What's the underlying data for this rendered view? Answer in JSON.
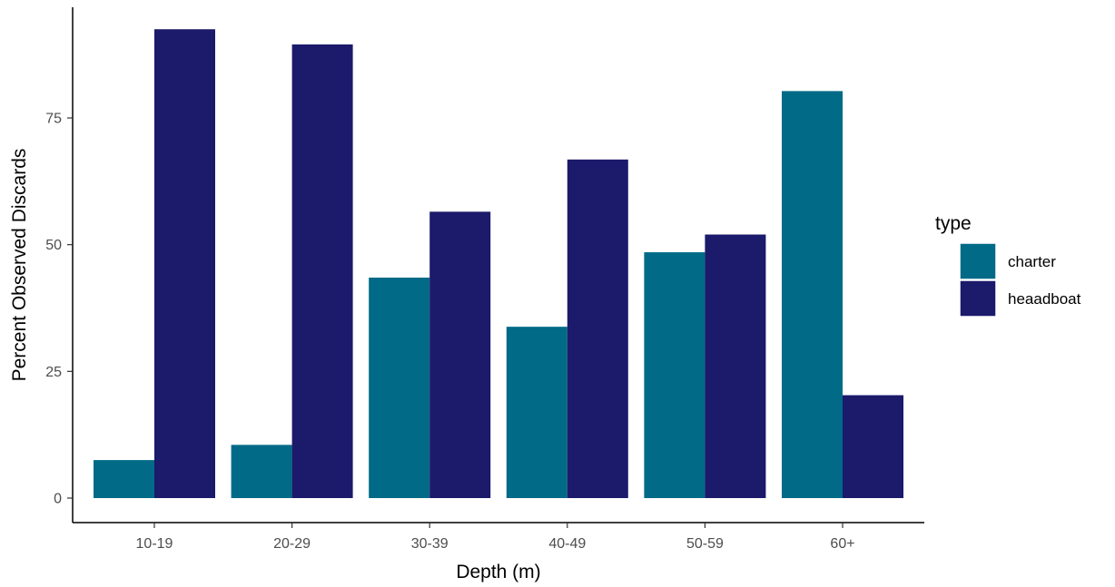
{
  "chart_data": {
    "type": "bar",
    "xlabel": "Depth (m)",
    "ylabel": "Percent Observed Discards",
    "categories": [
      "10-19",
      "20-29",
      "30-39",
      "40-49",
      "50-59",
      "60+"
    ],
    "series": [
      {
        "name": "charter",
        "color": "#006a87",
        "values": [
          7.5,
          10.5,
          43.5,
          33.8,
          48.5,
          80.3
        ]
      },
      {
        "name": "heaadboat",
        "color": "#1b1a6b",
        "values": [
          92.5,
          89.5,
          56.5,
          66.8,
          52.0,
          20.3
        ]
      }
    ],
    "ylim": [
      0,
      100
    ],
    "yticks": [
      0,
      25,
      50,
      75
    ],
    "grid": false,
    "legend": {
      "title": "type",
      "position": "right"
    }
  }
}
